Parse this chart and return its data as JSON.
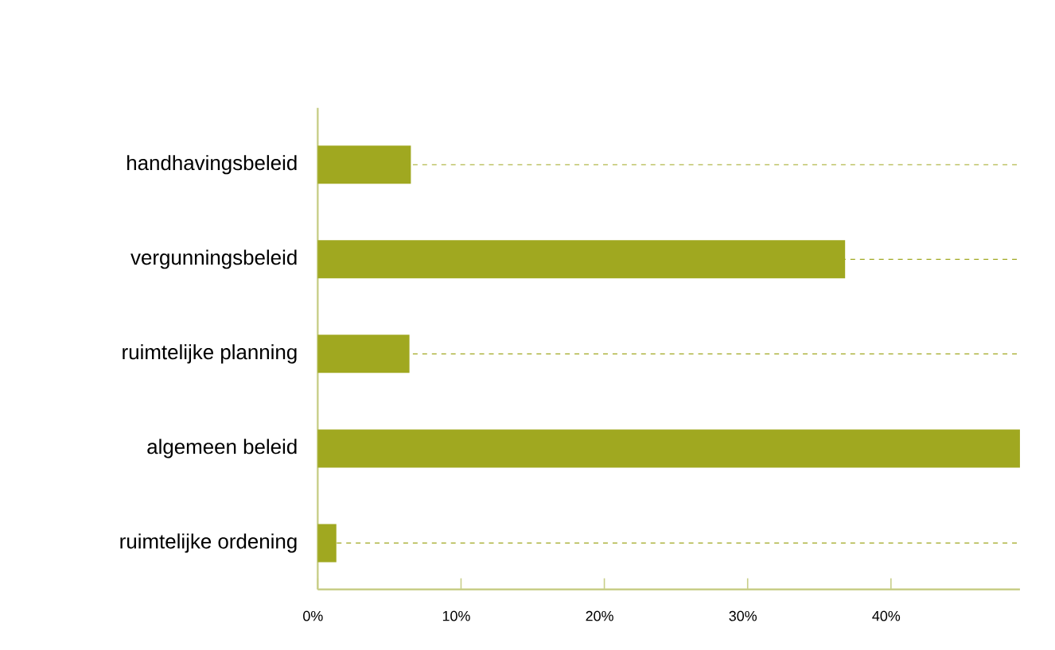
{
  "chart_data": {
    "type": "bar",
    "orientation": "horizontal",
    "categories": [
      "handhavingsbeleid",
      "vergunningsbeleid",
      "ruimtelijke planning",
      "algemeen beleid",
      "ruimtelijke ordening"
    ],
    "values": [
      6.5,
      36.8,
      6.4,
      49,
      1.3
    ],
    "color": "#a0a820",
    "xlim": [
      0,
      49
    ],
    "xticks": [
      {
        "value": 0,
        "label": "0%"
      },
      {
        "value": 10,
        "label": "10%"
      },
      {
        "value": 20,
        "label": "20%"
      },
      {
        "value": 30,
        "label": "30%"
      },
      {
        "value": 40,
        "label": "40%"
      }
    ],
    "grid": "y"
  }
}
